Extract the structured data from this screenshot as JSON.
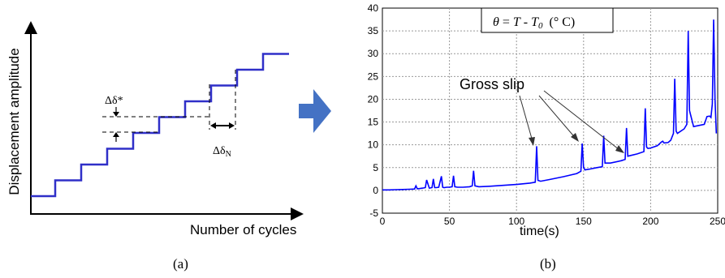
{
  "panel_a": {
    "ylabel": "Displacement amplitude",
    "xlabel": "Number of cycles",
    "delta_star_label": "Δδ*",
    "delta_n_label": "Δδ",
    "delta_n_sub": "N",
    "caption": "(a)",
    "line_color": "#2f2fc8"
  },
  "arrow": {
    "color": "#4472c4"
  },
  "panel_b": {
    "legend": "θ = T - T₀  (° C)",
    "legend_parts": {
      "theta": "θ",
      "eq": " = ",
      "t": "T",
      "minus": " - ",
      "t0": "T",
      "t0_sub": "0",
      "unit": "(° C)"
    },
    "annotation": "Gross slip",
    "caption": "(b)",
    "line_color": "#0000ff"
  },
  "chart_data": {
    "type": "line",
    "title": "",
    "xlabel": "time(s)",
    "ylabel": "",
    "xlim": [
      0,
      250
    ],
    "ylim": [
      -5,
      40
    ],
    "xticks": [
      0,
      50,
      100,
      150,
      200,
      250
    ],
    "yticks": [
      -5,
      0,
      5,
      10,
      15,
      20,
      25,
      30,
      35,
      40
    ],
    "grid": true,
    "series": [
      {
        "x": [
          0,
          5,
          10,
          15,
          20,
          24,
          25,
          26,
          28,
          30,
          32,
          33,
          35,
          37,
          38,
          39,
          40,
          42,
          44,
          45,
          46,
          48,
          50,
          52,
          53,
          54,
          56,
          60,
          65,
          67,
          68,
          69,
          72,
          80,
          90,
          100,
          110,
          114,
          115,
          116,
          118,
          125,
          135,
          145,
          148,
          149,
          150,
          151,
          155,
          160,
          164,
          165,
          166,
          170,
          178,
          181,
          182,
          183,
          190,
          195,
          196,
          197,
          198,
          200,
          205,
          208,
          209,
          210,
          213,
          215,
          217,
          218,
          219,
          220,
          225,
          227,
          228,
          229,
          232,
          240,
          242,
          244,
          245,
          246,
          247,
          248,
          249
        ],
        "y": [
          0.1,
          0.1,
          0.15,
          0.2,
          0.25,
          0.3,
          1.0,
          0.35,
          0.4,
          0.5,
          0.6,
          2.3,
          0.5,
          0.6,
          2.5,
          0.6,
          0.6,
          0.7,
          3.1,
          0.7,
          0.6,
          0.7,
          0.7,
          0.8,
          3.2,
          0.8,
          0.7,
          0.7,
          0.8,
          1.0,
          4.3,
          1.0,
          0.8,
          0.9,
          1.1,
          1.3,
          1.6,
          1.8,
          9.7,
          2.2,
          2.0,
          2.4,
          3.0,
          3.7,
          4.2,
          10.3,
          5.0,
          4.5,
          4.7,
          5.0,
          5.2,
          12.0,
          6.0,
          6.0,
          6.5,
          6.8,
          13.7,
          7.5,
          8.0,
          8.5,
          18.0,
          9.5,
          9.2,
          9.3,
          9.8,
          10.6,
          10.8,
          10.4,
          10.5,
          11.0,
          12.5,
          24.5,
          13.0,
          12.5,
          13.5,
          14.5,
          35.0,
          17.5,
          14.0,
          14.5,
          16.2,
          16.3,
          16.0,
          19.0,
          37.5,
          20.0,
          12.5
        ]
      }
    ]
  }
}
